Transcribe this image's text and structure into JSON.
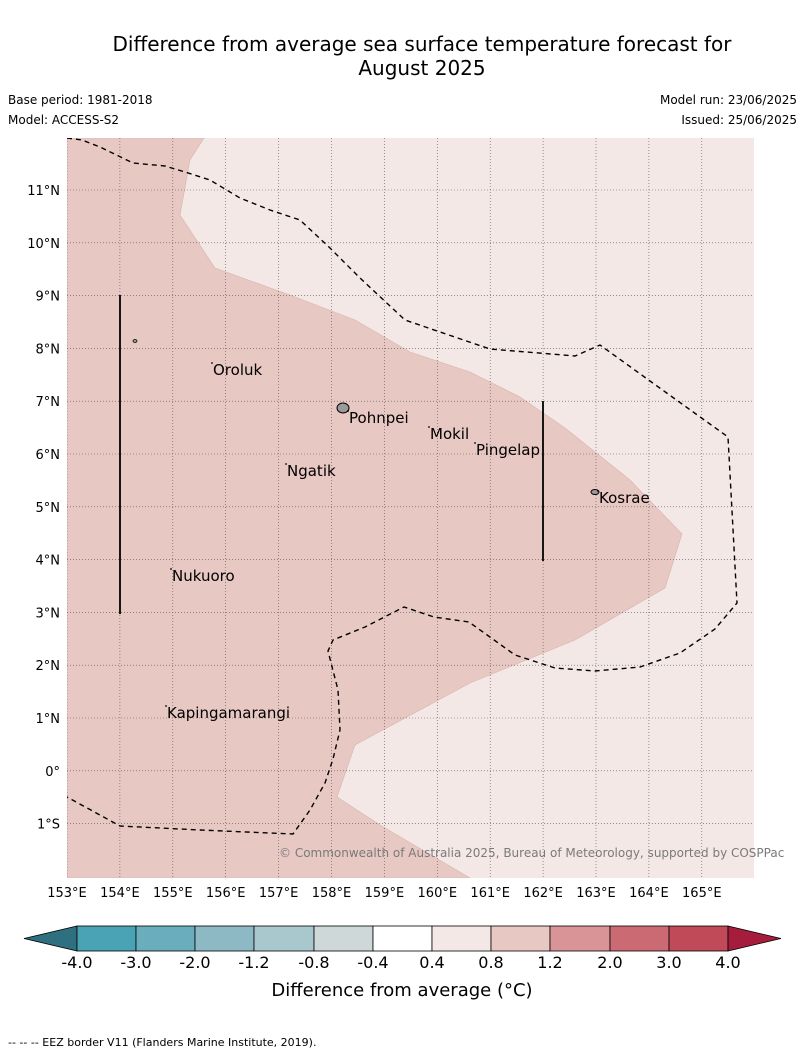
{
  "title_line1": "Difference from average sea surface temperature forecast for",
  "title_line2": "August 2025",
  "base_period": "Base period: 1981-2018",
  "model": "Model: ACCESS-S2",
  "model_run": "Model run: 23/06/2025",
  "issued": "Issued: 25/06/2025",
  "copyright": "© Commonwealth of Australia 2025, Bureau of Meteorology, supported by COSPPac",
  "colorbar_label": "Difference from average (°C)",
  "footnote": "--  --  -- EEZ border V11 (Flanders Marine Institute, 2019).",
  "map": {
    "lon_labels": [
      "153°E",
      "154°E",
      "155°E",
      "156°E",
      "157°E",
      "158°E",
      "159°E",
      "160°E",
      "161°E",
      "162°E",
      "163°E",
      "164°E",
      "165°E"
    ],
    "lat_labels": [
      "11°N",
      "10°N",
      "9°N",
      "8°N",
      "7°N",
      "6°N",
      "5°N",
      "4°N",
      "3°N",
      "2°N",
      "1°N",
      "0°",
      "1°S"
    ],
    "places": [
      "Oroluk",
      "Pohnpei",
      "Mokil",
      "Pingelap",
      "Ngatik",
      "Kosrae",
      "Nukuoro",
      "Kapingamarangi"
    ]
  },
  "colorbar": {
    "ticks": [
      "-4.0",
      "-3.0",
      "-2.0",
      "-1.2",
      "-0.8",
      "-0.4",
      "0.4",
      "0.8",
      "1.2",
      "2.0",
      "3.0",
      "4.0"
    ],
    "colors": [
      "#2e6f80",
      "#4aa3b5",
      "#6aaebe",
      "#8cb9c4",
      "#a9c8cd",
      "#cfd8d9",
      "#ffffff",
      "#f4e8e6",
      "#e8c8c3",
      "#d99498",
      "#cc6a74",
      "#c14a58",
      "#a61c3c"
    ]
  },
  "shading_colors": {
    "anomaly_0.4_0.8": "#f4e8e6",
    "anomaly_0.8_1.2": "#e8c8c3"
  }
}
